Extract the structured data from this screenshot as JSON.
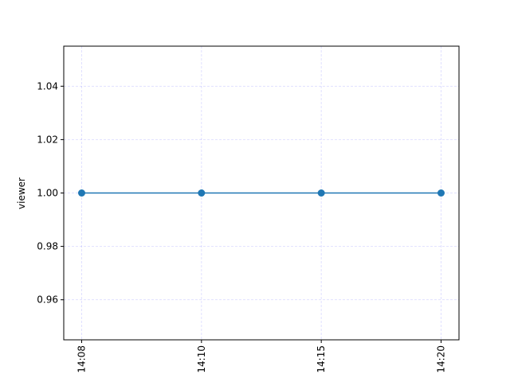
{
  "chart_data": {
    "type": "line",
    "title": "",
    "xlabel": "",
    "ylabel": "viewer",
    "x": [
      "14:08",
      "14:10",
      "14:15",
      "14:20"
    ],
    "series": [
      {
        "values": [
          1.0,
          1.0,
          1.0,
          1.0
        ],
        "color": "#1f77b4",
        "marker": "circle"
      }
    ],
    "x_tick_labels": [
      "14:08",
      "14:10",
      "14:15",
      "14:20"
    ],
    "y_tick_labels": [
      "0.96",
      "0.98",
      "1.00",
      "1.02",
      "1.04"
    ],
    "y_ticks": [
      0.96,
      0.98,
      1.0,
      1.02,
      1.04
    ],
    "ylim": [
      0.945,
      1.055
    ],
    "grid": true,
    "grid_color": "#0000ff",
    "legend": "none",
    "x_tick_rotation": "vertical"
  }
}
